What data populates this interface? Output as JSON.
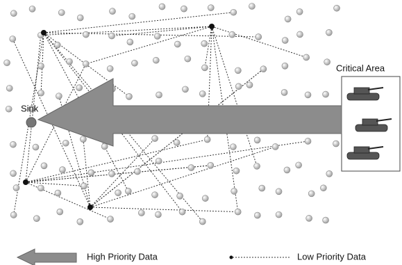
{
  "labels": {
    "sink": "Sink",
    "critical_area": "Critical Area"
  },
  "legend": {
    "high": "High Priority Data",
    "low": "Low Priority Data"
  }
}
